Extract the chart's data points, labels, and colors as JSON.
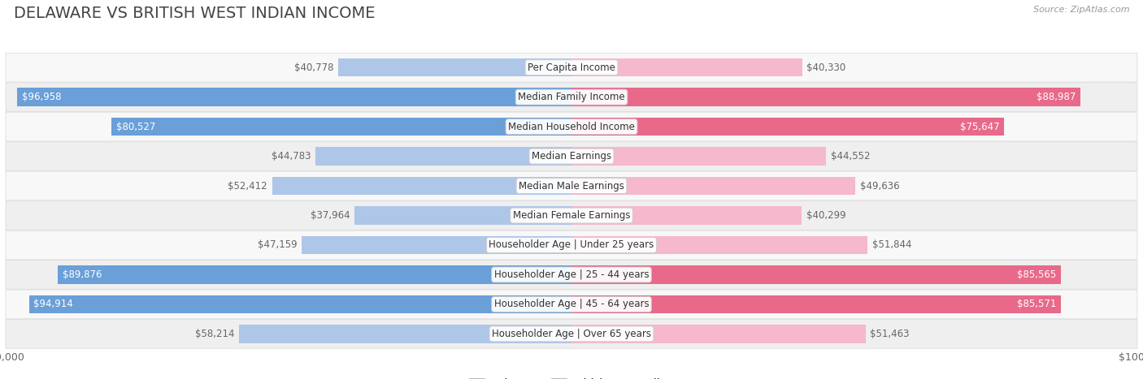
{
  "title": "DELAWARE VS BRITISH WEST INDIAN INCOME",
  "source": "Source: ZipAtlas.com",
  "categories": [
    "Per Capita Income",
    "Median Family Income",
    "Median Household Income",
    "Median Earnings",
    "Median Male Earnings",
    "Median Female Earnings",
    "Householder Age | Under 25 years",
    "Householder Age | 25 - 44 years",
    "Householder Age | 45 - 64 years",
    "Householder Age | Over 65 years"
  ],
  "delaware_values": [
    40778,
    96958,
    80527,
    44783,
    52412,
    37964,
    47159,
    89876,
    94914,
    58214
  ],
  "bwi_values": [
    40330,
    88987,
    75647,
    44552,
    49636,
    40299,
    51844,
    85565,
    85571,
    51463
  ],
  "delaware_labels": [
    "$40,778",
    "$96,958",
    "$80,527",
    "$44,783",
    "$52,412",
    "$37,964",
    "$47,159",
    "$89,876",
    "$94,914",
    "$58,214"
  ],
  "bwi_labels": [
    "$40,330",
    "$88,987",
    "$75,647",
    "$44,552",
    "$49,636",
    "$40,299",
    "$51,844",
    "$85,565",
    "$85,571",
    "$51,463"
  ],
  "max_value": 100000,
  "delaware_light_color": "#aec6e8",
  "delaware_dark_color": "#6a9fd8",
  "bwi_light_color": "#f5b8cc",
  "bwi_dark_color": "#e8698a",
  "row_bg_light": "#f8f8f8",
  "row_bg_dark": "#efefef",
  "row_border_color": "#dddddd",
  "title_color": "#444444",
  "source_color": "#999999",
  "label_inside_color": "#ffffff",
  "label_outside_color": "#666666",
  "label_fontsize": 8.5,
  "title_fontsize": 14,
  "category_fontsize": 8.5,
  "legend_fontsize": 9.5,
  "large_threshold": 60000
}
